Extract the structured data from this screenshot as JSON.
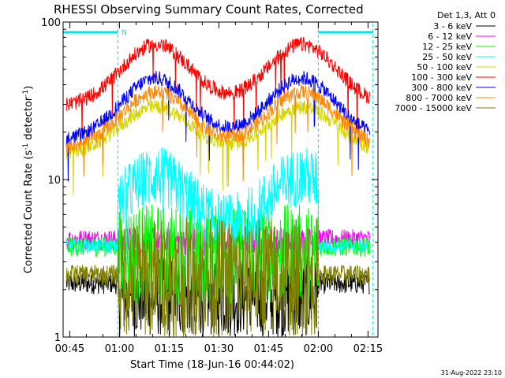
{
  "chart_data": {
    "type": "line",
    "title": "RHESSI Observing Summary Count Rates, Corrected",
    "xlabel": "Start Time (18-Jun-16 00:44:02)",
    "ylabel": "Corrected Count Rate (s",
    "ylabel_sup1": "-1",
    "ylabel_mid": " detector",
    "ylabel_sup2": "-1",
    "ylabel_end": ")",
    "y_scale": "log",
    "ylim": [
      1,
      100
    ],
    "xlim_minutes": [
      -1,
      94
    ],
    "x_ticks": [
      {
        "label": "00:45",
        "minute": 1
      },
      {
        "label": "01:00",
        "minute": 16
      },
      {
        "label": "01:15",
        "minute": 31
      },
      {
        "label": "01:30",
        "minute": 46
      },
      {
        "label": "01:45",
        "minute": 61
      },
      {
        "label": "02:00",
        "minute": 76
      },
      {
        "label": "02:15",
        "minute": 91
      }
    ],
    "y_tick_labels": [
      {
        "label": "1",
        "value": 1
      },
      {
        "label": "10",
        "value": 10
      },
      {
        "label": "100",
        "value": 100
      }
    ],
    "legend_header": "Det 1,3, Att 0",
    "legend_placement": "right",
    "night_markers": [
      {
        "label": "N",
        "start_minute": -1,
        "end_minute": 15.5
      },
      {
        "label": "",
        "start_minute": 76,
        "end_minute": 92.5
      }
    ],
    "series": [
      {
        "name": "3 - 6 keV",
        "color": "#000000",
        "kind": "noise",
        "low": 1.0,
        "high": 3.2,
        "night_level": 2.2
      },
      {
        "name": "6 - 12 keV",
        "color": "#ff00ff",
        "kind": "noise",
        "low": 3.3,
        "high": 5.0,
        "night_level": 4.2
      },
      {
        "name": "12 - 25 keV",
        "color": "#00ff00",
        "kind": "noise",
        "low": 1.6,
        "high": 7.0,
        "night_level": 3.8
      },
      {
        "name": "25 - 50 keV",
        "color": "#00ffff",
        "kind": "orbit",
        "base": 4.3,
        "peak": 10.5,
        "noise": 0.2,
        "night_level": 3.8
      },
      {
        "name": "50 - 100 keV",
        "color": "#d4d400",
        "kind": "orbit",
        "base": 14.5,
        "peak": 29,
        "noise": 0.05
      },
      {
        "name": "100 - 300 keV",
        "color": "#ff0000",
        "kind": "orbit",
        "base": 29,
        "peak": 72,
        "noise": 0.05
      },
      {
        "name": "300 - 800 keV",
        "color": "#0000ff",
        "kind": "orbit",
        "base": 17.5,
        "peak": 44,
        "noise": 0.05
      },
      {
        "name": "800 - 7000 keV",
        "color": "#ff8800",
        "kind": "orbit",
        "base": 15.5,
        "peak": 36,
        "noise": 0.05
      },
      {
        "name": "7000 - 15000 keV",
        "color": "#808000",
        "kind": "noise",
        "low": 1.0,
        "high": 5.8,
        "night_level": 2.5
      }
    ],
    "orbit_peaks_minutes": [
      27,
      71
    ],
    "orbit_sigma_minutes": 10.5,
    "data_range_minutes": [
      0,
      91.5
    ]
  },
  "footer_timestamp": "31-Aug-2022 23:10"
}
